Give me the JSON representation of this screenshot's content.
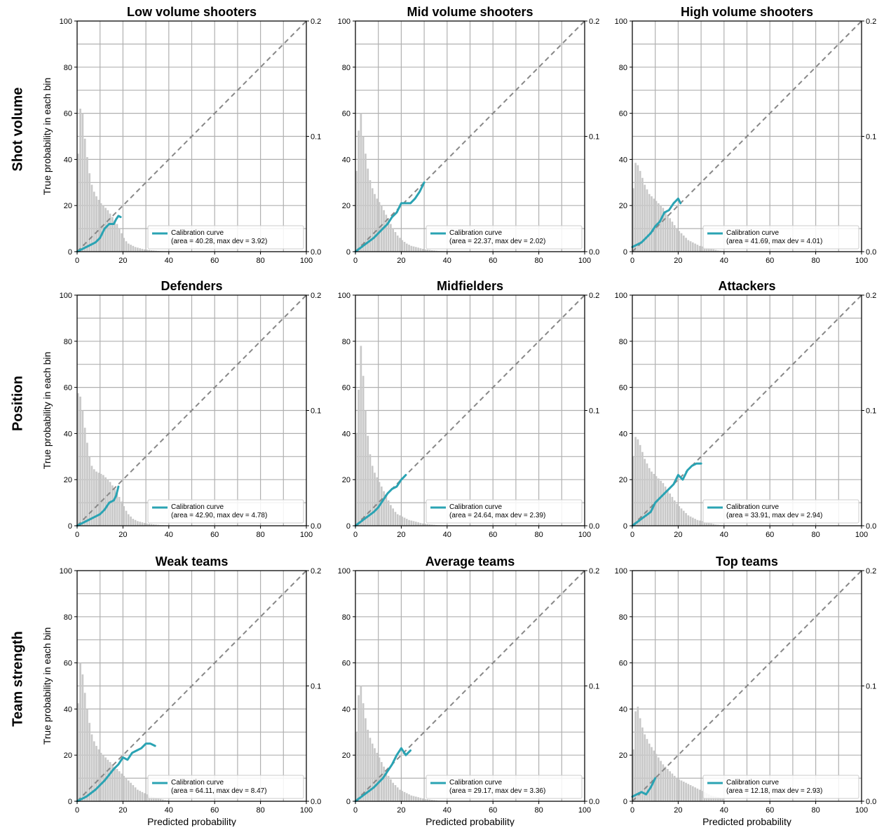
{
  "figure": {
    "row_labels": [
      "Shot volume",
      "Position",
      "Team strength"
    ],
    "xlabel": "Predicted probability",
    "ylabel": "True probability in each bin",
    "legend_label": "Calibration curve",
    "colors": {
      "curve": "#2aa3b3",
      "diagonal": "#888888",
      "hist": "#c8c8c8",
      "grid": "#b0b0b0"
    }
  },
  "chart_data": [
    {
      "type": "line",
      "title": "Low volume shooters",
      "xlim": [
        0,
        100
      ],
      "ylim": [
        0,
        100
      ],
      "y2lim": [
        0,
        0.2
      ],
      "xticks": [
        "0",
        "20",
        "40",
        "60",
        "80",
        "100"
      ],
      "yticks": [
        "0",
        "20",
        "40",
        "60",
        "80",
        "100"
      ],
      "y2ticks": [
        "0.0",
        "0.1",
        "0.2"
      ],
      "grid": true,
      "legend": "lower-right",
      "legend_text": "(area = 40.28, max dev = 3.92)",
      "hist_density": [
        0.085,
        0.124,
        0.12,
        0.098,
        0.082,
        0.068,
        0.058,
        0.052,
        0.048,
        0.045,
        0.042,
        0.04,
        0.038,
        0.036,
        0.033,
        0.03,
        0.027,
        0.024,
        0.02,
        0.016,
        0.012,
        0.009,
        0.007,
        0.006,
        0.005,
        0.004,
        0.0035,
        0.003,
        0.0025,
        0.002,
        0.0018,
        0.0015,
        0.0012,
        0.001,
        0.0008,
        0.0006,
        0.0005,
        0.0004,
        0.0003,
        0.0002
      ],
      "curve": [
        [
          0,
          0
        ],
        [
          2,
          1
        ],
        [
          4,
          2
        ],
        [
          6,
          3
        ],
        [
          8,
          4
        ],
        [
          10,
          6
        ],
        [
          12,
          10
        ],
        [
          14,
          12
        ],
        [
          16,
          12
        ],
        [
          17,
          14
        ],
        [
          18,
          15.5
        ],
        [
          19,
          15
        ]
      ]
    },
    {
      "type": "line",
      "title": "Mid volume shooters",
      "xlim": [
        0,
        100
      ],
      "ylim": [
        0,
        100
      ],
      "y2lim": [
        0,
        0.2
      ],
      "xticks": [
        "0",
        "20",
        "40",
        "60",
        "80",
        "100"
      ],
      "yticks": [
        "0",
        "20",
        "40",
        "60",
        "80",
        "100"
      ],
      "y2ticks": [
        "0.0",
        "0.1",
        "0.2"
      ],
      "grid": true,
      "legend": "lower-right",
      "legend_text": "(area = 22.37, max dev = 2.02)",
      "hist_density": [
        0.07,
        0.105,
        0.12,
        0.1,
        0.085,
        0.072,
        0.062,
        0.055,
        0.05,
        0.046,
        0.043,
        0.04,
        0.036,
        0.032,
        0.028,
        0.024,
        0.02,
        0.017,
        0.014,
        0.012,
        0.01,
        0.0085,
        0.007,
        0.006,
        0.005,
        0.0045,
        0.004,
        0.0035,
        0.003,
        0.0025,
        0.002,
        0.0018,
        0.0015,
        0.0012,
        0.001,
        0.0008,
        0.0006,
        0.0005,
        0.0004,
        0.0003
      ],
      "curve": [
        [
          0,
          0
        ],
        [
          4,
          3
        ],
        [
          8,
          6
        ],
        [
          12,
          10
        ],
        [
          14,
          12
        ],
        [
          16,
          15
        ],
        [
          18,
          17
        ],
        [
          20,
          21
        ],
        [
          22,
          21
        ],
        [
          24,
          21
        ],
        [
          26,
          23
        ],
        [
          28,
          26
        ],
        [
          30,
          30
        ]
      ]
    },
    {
      "type": "line",
      "title": "High volume shooters",
      "xlim": [
        0,
        100
      ],
      "ylim": [
        0,
        100
      ],
      "y2lim": [
        0,
        0.2
      ],
      "xticks": [
        "0",
        "20",
        "40",
        "60",
        "80",
        "100"
      ],
      "yticks": [
        "0",
        "20",
        "40",
        "60",
        "80",
        "100"
      ],
      "y2ticks": [
        "0.0",
        "0.1",
        "0.2"
      ],
      "grid": true,
      "legend": "lower-right",
      "legend_text": "(area = 41.69, max dev = 4.01)",
      "hist_density": [
        0.055,
        0.077,
        0.075,
        0.07,
        0.064,
        0.058,
        0.054,
        0.05,
        0.048,
        0.046,
        0.044,
        0.042,
        0.04,
        0.038,
        0.035,
        0.032,
        0.029,
        0.026,
        0.023,
        0.02,
        0.018,
        0.016,
        0.014,
        0.012,
        0.01,
        0.009,
        0.008,
        0.007,
        0.006,
        0.005,
        0.0045,
        0.004,
        0.0035,
        0.003,
        0.0025,
        0.002,
        0.0015,
        0.001,
        0.0008,
        0.0006
      ],
      "curve": [
        [
          0,
          2
        ],
        [
          4,
          4
        ],
        [
          8,
          8
        ],
        [
          10,
          11
        ],
        [
          12,
          13
        ],
        [
          14,
          17
        ],
        [
          16,
          18
        ],
        [
          18,
          21
        ],
        [
          20,
          23
        ],
        [
          21,
          21
        ]
      ]
    },
    {
      "type": "line",
      "title": "Defenders",
      "xlim": [
        0,
        100
      ],
      "ylim": [
        0,
        100
      ],
      "y2lim": [
        0,
        0.2
      ],
      "xticks": [
        "0",
        "20",
        "40",
        "60",
        "80",
        "100"
      ],
      "yticks": [
        "0",
        "20",
        "40",
        "60",
        "80",
        "100"
      ],
      "y2ticks": [
        "0.0",
        "0.1",
        "0.2"
      ],
      "grid": true,
      "legend": "lower-right",
      "legend_text": "(area = 42.90, max dev = 4.78)",
      "hist_density": [
        0.115,
        0.112,
        0.1,
        0.085,
        0.072,
        0.06,
        0.052,
        0.049,
        0.047,
        0.046,
        0.045,
        0.044,
        0.042,
        0.04,
        0.038,
        0.035,
        0.032,
        0.029,
        0.025,
        0.021,
        0.017,
        0.013,
        0.01,
        0.008,
        0.006,
        0.005,
        0.004,
        0.0035,
        0.003,
        0.0025,
        0.002,
        0.0018,
        0.0015,
        0.0012,
        0.001,
        0.0008,
        0.0006,
        0.0005,
        0.0004,
        0.0003
      ],
      "curve": [
        [
          0,
          0
        ],
        [
          2,
          1
        ],
        [
          4,
          2
        ],
        [
          6,
          3
        ],
        [
          8,
          4
        ],
        [
          10,
          5
        ],
        [
          12,
          7
        ],
        [
          14,
          10
        ],
        [
          16,
          11
        ],
        [
          17,
          13
        ],
        [
          18,
          17
        ]
      ]
    },
    {
      "type": "line",
      "title": "Midfielders",
      "xlim": [
        0,
        100
      ],
      "ylim": [
        0,
        100
      ],
      "y2lim": [
        0,
        0.2
      ],
      "xticks": [
        "0",
        "20",
        "40",
        "60",
        "80",
        "100"
      ],
      "yticks": [
        "0",
        "20",
        "40",
        "60",
        "80",
        "100"
      ],
      "y2ticks": [
        "0.0",
        "0.1",
        "0.2"
      ],
      "grid": true,
      "legend": "lower-right",
      "legend_text": "(area = 24.64, max dev = 2.39)",
      "hist_density": [
        0.08,
        0.118,
        0.156,
        0.13,
        0.1,
        0.078,
        0.062,
        0.052,
        0.046,
        0.042,
        0.038,
        0.034,
        0.03,
        0.026,
        0.022,
        0.018,
        0.015,
        0.012,
        0.01,
        0.009,
        0.008,
        0.007,
        0.006,
        0.005,
        0.0045,
        0.004,
        0.0035,
        0.003,
        0.0025,
        0.002,
        0.0018,
        0.0015,
        0.0012,
        0.001,
        0.0008,
        0.0006,
        0.0005,
        0.0004,
        0.0003,
        0.0002
      ],
      "curve": [
        [
          0,
          0
        ],
        [
          4,
          3
        ],
        [
          8,
          6
        ],
        [
          10,
          8
        ],
        [
          12,
          11
        ],
        [
          14,
          14
        ],
        [
          16,
          16
        ],
        [
          18,
          17
        ],
        [
          20,
          20
        ],
        [
          21,
          21
        ],
        [
          22,
          22
        ]
      ]
    },
    {
      "type": "line",
      "title": "Attackers",
      "xlim": [
        0,
        100
      ],
      "ylim": [
        0,
        100
      ],
      "y2lim": [
        0,
        0.2
      ],
      "xticks": [
        "0",
        "20",
        "40",
        "60",
        "80",
        "100"
      ],
      "yticks": [
        "0",
        "20",
        "40",
        "60",
        "80",
        "100"
      ],
      "y2ticks": [
        "0.0",
        "0.1",
        "0.2"
      ],
      "grid": true,
      "legend": "lower-right",
      "legend_text": "(area = 33.91, max dev = 2.94)",
      "hist_density": [
        0.06,
        0.077,
        0.075,
        0.07,
        0.064,
        0.058,
        0.054,
        0.05,
        0.047,
        0.045,
        0.043,
        0.041,
        0.039,
        0.037,
        0.034,
        0.031,
        0.028,
        0.025,
        0.022,
        0.019,
        0.017,
        0.015,
        0.013,
        0.011,
        0.009,
        0.008,
        0.007,
        0.006,
        0.005,
        0.0045,
        0.004,
        0.0035,
        0.003,
        0.0025,
        0.002,
        0.0015,
        0.001,
        0.0008,
        0.0006,
        0.0005
      ],
      "curve": [
        [
          0,
          0
        ],
        [
          4,
          3
        ],
        [
          8,
          6
        ],
        [
          10,
          10
        ],
        [
          12,
          12
        ],
        [
          14,
          14
        ],
        [
          16,
          16
        ],
        [
          18,
          18
        ],
        [
          20,
          22
        ],
        [
          22,
          20
        ],
        [
          24,
          24
        ],
        [
          26,
          26
        ],
        [
          28,
          27
        ],
        [
          30,
          27
        ]
      ]
    },
    {
      "type": "line",
      "title": "Weak teams",
      "xlim": [
        0,
        100
      ],
      "ylim": [
        0,
        100
      ],
      "y2lim": [
        0,
        0.2
      ],
      "xticks": [
        "0",
        "20",
        "40",
        "60",
        "80",
        "100"
      ],
      "yticks": [
        "0",
        "20",
        "40",
        "60",
        "80",
        "100"
      ],
      "y2ticks": [
        "0.0",
        "0.1",
        "0.2"
      ],
      "grid": true,
      "legend": "lower-right",
      "legend_text": "(area = 64.11, max dev = 8.47)",
      "hist_density": [
        0.085,
        0.12,
        0.11,
        0.094,
        0.08,
        0.068,
        0.058,
        0.052,
        0.048,
        0.045,
        0.042,
        0.04,
        0.038,
        0.036,
        0.034,
        0.032,
        0.03,
        0.028,
        0.026,
        0.024,
        0.022,
        0.02,
        0.018,
        0.016,
        0.014,
        0.012,
        0.01,
        0.009,
        0.008,
        0.007,
        0.006,
        0.005,
        0.004,
        0.0035,
        0.003,
        0.0025,
        0.002,
        0.0015,
        0.001,
        0.0008
      ],
      "curve": [
        [
          0,
          0
        ],
        [
          4,
          2
        ],
        [
          8,
          5
        ],
        [
          12,
          9
        ],
        [
          16,
          14
        ],
        [
          18,
          16
        ],
        [
          20,
          19
        ],
        [
          22,
          18
        ],
        [
          24,
          21
        ],
        [
          26,
          22
        ],
        [
          28,
          23
        ],
        [
          30,
          25
        ],
        [
          32,
          25
        ],
        [
          34,
          24
        ]
      ]
    },
    {
      "type": "line",
      "title": "Average teams",
      "xlim": [
        0,
        100
      ],
      "ylim": [
        0,
        100
      ],
      "y2lim": [
        0,
        0.2
      ],
      "xticks": [
        "0",
        "20",
        "40",
        "60",
        "80",
        "100"
      ],
      "yticks": [
        "0",
        "20",
        "40",
        "60",
        "80",
        "100"
      ],
      "y2ticks": [
        "0.0",
        "0.1",
        "0.2"
      ],
      "grid": true,
      "legend": "lower-right",
      "legend_text": "(area = 29.17, max dev = 3.36)",
      "hist_density": [
        0.06,
        0.092,
        0.1,
        0.085,
        0.072,
        0.062,
        0.055,
        0.05,
        0.046,
        0.042,
        0.038,
        0.034,
        0.03,
        0.026,
        0.022,
        0.019,
        0.016,
        0.014,
        0.012,
        0.01,
        0.009,
        0.008,
        0.007,
        0.006,
        0.005,
        0.0045,
        0.004,
        0.0035,
        0.003,
        0.0025,
        0.002,
        0.0018,
        0.0015,
        0.0012,
        0.001,
        0.0008,
        0.0006,
        0.0005,
        0.0004,
        0.0003
      ],
      "curve": [
        [
          0,
          0
        ],
        [
          4,
          3
        ],
        [
          8,
          6
        ],
        [
          12,
          10
        ],
        [
          16,
          16
        ],
        [
          18,
          20
        ],
        [
          20,
          23
        ],
        [
          22,
          20
        ],
        [
          24,
          22
        ]
      ]
    },
    {
      "type": "line",
      "title": "Top teams",
      "xlim": [
        0,
        100
      ],
      "ylim": [
        0,
        100
      ],
      "y2lim": [
        0,
        0.2
      ],
      "xticks": [
        "0",
        "20",
        "40",
        "60",
        "80",
        "100"
      ],
      "yticks": [
        "0",
        "20",
        "40",
        "60",
        "80",
        "100"
      ],
      "y2ticks": [
        "0.0",
        "0.1",
        "0.2"
      ],
      "grid": true,
      "legend": "lower-right",
      "legend_text": "(area = 12.18, max dev = 2.93)",
      "hist_density": [
        0.045,
        0.078,
        0.082,
        0.072,
        0.064,
        0.058,
        0.054,
        0.05,
        0.047,
        0.044,
        0.041,
        0.038,
        0.035,
        0.032,
        0.03,
        0.028,
        0.026,
        0.024,
        0.022,
        0.02,
        0.019,
        0.018,
        0.017,
        0.016,
        0.015,
        0.014,
        0.013,
        0.012,
        0.011,
        0.01,
        0.009,
        0.008,
        0.007,
        0.006,
        0.005,
        0.0045,
        0.004,
        0.0035,
        0.003,
        0.0025
      ],
      "curve": [
        [
          0,
          2
        ],
        [
          2,
          3
        ],
        [
          4,
          4
        ],
        [
          6,
          3
        ],
        [
          8,
          6
        ],
        [
          10,
          10
        ]
      ]
    }
  ]
}
